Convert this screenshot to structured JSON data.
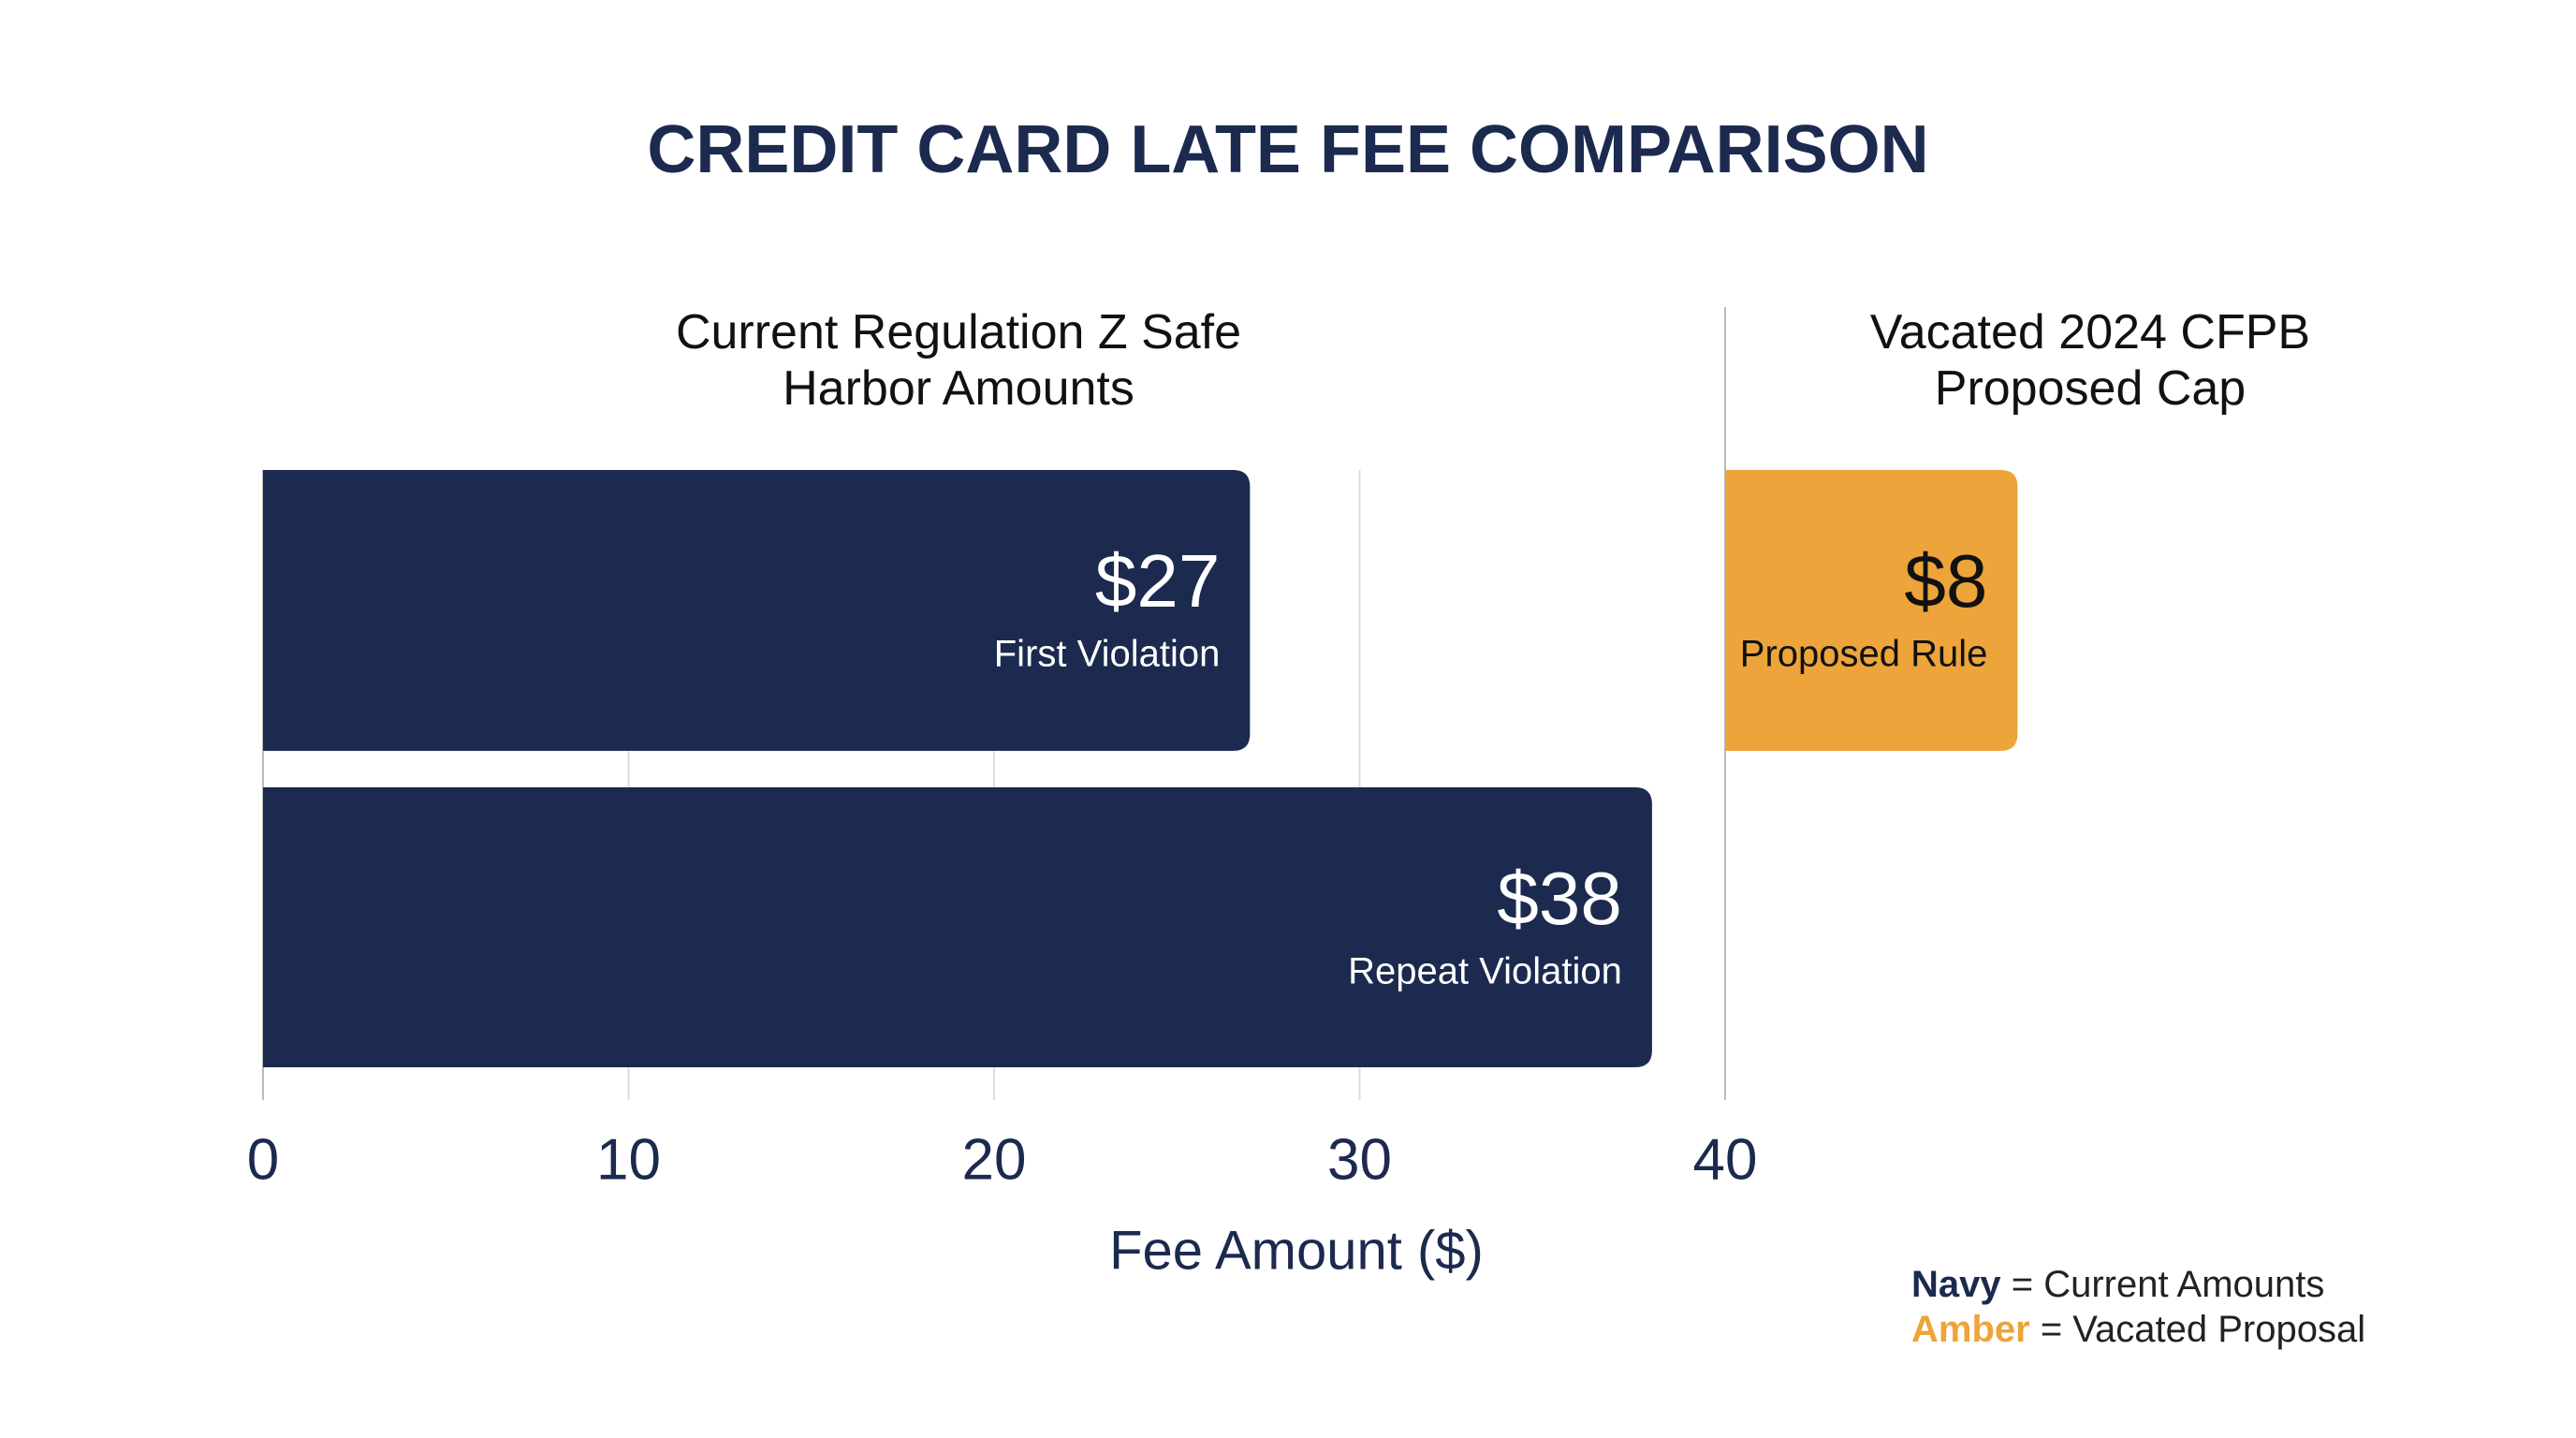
{
  "title": "CREDIT CARD LATE FEE COMPARISON",
  "chart_data": [
    {
      "type": "hbar",
      "subtitle": "Current Regulation Z Safe Harbor Amounts",
      "categories": [
        "First Violation",
        "Repeat Violation"
      ],
      "values": [
        27,
        38
      ],
      "value_labels": [
        "$27",
        "$38"
      ],
      "color": "#1b2a4e",
      "xlim": [
        0,
        40
      ],
      "xticks": [
        0,
        10,
        20,
        30,
        40
      ],
      "xlabel": "Fee Amount ($)",
      "grid": true
    },
    {
      "type": "hbar",
      "subtitle": "Vacated 2024 CFPB Proposed Cap",
      "categories": [
        "Proposed Rule"
      ],
      "values": [
        8
      ],
      "value_labels": [
        "$8"
      ],
      "color": "#eda43a"
    }
  ],
  "legend": [
    {
      "key": "Navy",
      "text": "= Current Amounts",
      "color": "#1b2a4e"
    },
    {
      "key": "Amber",
      "text": "= Vacated Proposal",
      "color": "#eda43a"
    }
  ]
}
